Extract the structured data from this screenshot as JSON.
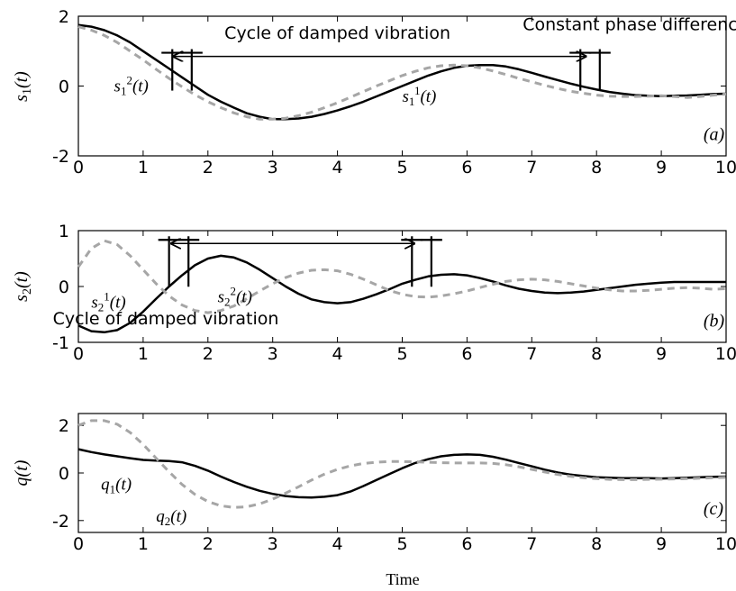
{
  "figure": {
    "xlabel": "Time"
  },
  "chart_data": [
    {
      "type": "line",
      "panel": "(a)",
      "ylabel": {
        "base": "s",
        "sub": "1",
        "arg": "(t)"
      },
      "xlim": [
        0,
        10
      ],
      "ylim": [
        -2,
        2
      ],
      "xticks": [
        "0",
        "1",
        "2",
        "3",
        "4",
        "5",
        "6",
        "7",
        "8",
        "9",
        "10"
      ],
      "yticks": [
        {
          "value": 2,
          "label": "2"
        },
        {
          "value": 0,
          "label": "0"
        },
        {
          "value": -2,
          "label": "-2"
        }
      ],
      "series": [
        {
          "name": "s₁¹(t)",
          "style": "solid",
          "color": "#000000",
          "x": [
            0,
            0.2,
            0.4,
            0.6,
            0.8,
            1.0,
            1.2,
            1.4,
            1.6,
            1.8,
            2.0,
            2.2,
            2.4,
            2.6,
            2.8,
            3.0,
            3.2,
            3.4,
            3.6,
            3.8,
            4.0,
            4.2,
            4.4,
            4.6,
            4.8,
            5.0,
            5.2,
            5.4,
            5.6,
            5.8,
            6.0,
            6.2,
            6.4,
            6.6,
            6.8,
            7.0,
            7.2,
            7.4,
            7.6,
            7.8,
            8.0,
            8.2,
            8.4,
            8.6,
            8.8,
            9.0,
            9.2,
            9.4,
            9.6,
            9.8,
            10.0
          ],
          "y": [
            1.75,
            1.7,
            1.6,
            1.45,
            1.25,
            1.0,
            0.75,
            0.5,
            0.25,
            0.0,
            -0.25,
            -0.45,
            -0.62,
            -0.78,
            -0.88,
            -0.95,
            -0.95,
            -0.93,
            -0.88,
            -0.8,
            -0.7,
            -0.58,
            -0.45,
            -0.3,
            -0.15,
            0.0,
            0.15,
            0.3,
            0.42,
            0.52,
            0.58,
            0.6,
            0.6,
            0.56,
            0.48,
            0.38,
            0.27,
            0.17,
            0.07,
            -0.02,
            -0.1,
            -0.17,
            -0.22,
            -0.26,
            -0.28,
            -0.29,
            -0.28,
            -0.27,
            -0.25,
            -0.23,
            -0.22
          ]
        },
        {
          "name": "s₁²(t)",
          "style": "dashed",
          "color": "#a6a6a6",
          "x": [
            0,
            0.2,
            0.4,
            0.6,
            0.8,
            1.0,
            1.2,
            1.4,
            1.6,
            1.8,
            2.0,
            2.2,
            2.4,
            2.6,
            2.8,
            3.0,
            3.2,
            3.4,
            3.6,
            3.8,
            4.0,
            4.2,
            4.4,
            4.6,
            4.8,
            5.0,
            5.2,
            5.4,
            5.6,
            5.8,
            6.0,
            6.2,
            6.4,
            6.6,
            6.8,
            7.0,
            7.2,
            7.4,
            7.6,
            7.8,
            8.0,
            8.2,
            8.4,
            8.6,
            8.8,
            9.0,
            9.2,
            9.4,
            9.6,
            9.8,
            10.0
          ],
          "y": [
            1.7,
            1.6,
            1.45,
            1.25,
            1.0,
            0.75,
            0.48,
            0.22,
            -0.02,
            -0.25,
            -0.45,
            -0.62,
            -0.77,
            -0.88,
            -0.95,
            -0.95,
            -0.92,
            -0.85,
            -0.75,
            -0.62,
            -0.48,
            -0.32,
            -0.16,
            0.0,
            0.15,
            0.3,
            0.42,
            0.52,
            0.58,
            0.6,
            0.58,
            0.52,
            0.43,
            0.33,
            0.22,
            0.12,
            0.02,
            -0.07,
            -0.15,
            -0.21,
            -0.26,
            -0.29,
            -0.3,
            -0.3,
            -0.29,
            -0.28,
            -0.3,
            -0.33,
            -0.3,
            -0.26,
            -0.23
          ]
        }
      ],
      "annotations": [
        {
          "text": "Cycle of damped vibration",
          "x": 4.0,
          "y": 1.35
        },
        {
          "text": "Constant phase difference",
          "x": 8.6,
          "y": 1.6
        },
        {
          "label_base": "s",
          "label_sub": "1",
          "label_sup": "2",
          "label_arg": "(t)",
          "x": 0.55,
          "y": -0.15
        },
        {
          "label_base": "s",
          "label_sub": "1",
          "label_sup": "1",
          "label_arg": "(t)",
          "x": 5.0,
          "y": -0.45
        },
        {
          "text": "(a)",
          "x": 9.65,
          "y": -1.55
        }
      ],
      "cycle_arrow": {
        "x_start": 1.45,
        "x_end": 7.85,
        "y": 0.85
      },
      "markers_at": [
        1.45,
        1.75,
        7.75,
        8.05
      ]
    },
    {
      "type": "line",
      "panel": "(b)",
      "ylabel": {
        "base": "s",
        "sub": "2",
        "arg": "(t)"
      },
      "xlim": [
        0,
        10
      ],
      "ylim": [
        -1,
        1
      ],
      "xticks": [
        "0",
        "1",
        "2",
        "3",
        "4",
        "5",
        "6",
        "7",
        "8",
        "9",
        "10"
      ],
      "yticks": [
        {
          "value": 1,
          "label": "1"
        },
        {
          "value": 0,
          "label": "0"
        },
        {
          "value": -1,
          "label": "-1"
        }
      ],
      "series": [
        {
          "name": "s₂¹(t)",
          "style": "solid",
          "color": "#000000",
          "x": [
            0,
            0.2,
            0.4,
            0.6,
            0.8,
            1.0,
            1.2,
            1.4,
            1.6,
            1.8,
            2.0,
            2.2,
            2.4,
            2.6,
            2.8,
            3.0,
            3.2,
            3.4,
            3.6,
            3.8,
            4.0,
            4.2,
            4.4,
            4.6,
            4.8,
            5.0,
            5.2,
            5.4,
            5.6,
            5.8,
            6.0,
            6.2,
            6.4,
            6.6,
            6.8,
            7.0,
            7.2,
            7.4,
            7.6,
            7.8,
            8.0,
            8.2,
            8.4,
            8.6,
            8.8,
            9.0,
            9.2,
            9.4,
            9.6,
            9.8,
            10.0
          ],
          "y": [
            -0.7,
            -0.8,
            -0.82,
            -0.78,
            -0.65,
            -0.45,
            -0.22,
            0.0,
            0.2,
            0.38,
            0.5,
            0.55,
            0.52,
            0.43,
            0.3,
            0.15,
            0.0,
            -0.13,
            -0.23,
            -0.28,
            -0.3,
            -0.28,
            -0.22,
            -0.14,
            -0.05,
            0.05,
            0.12,
            0.18,
            0.21,
            0.22,
            0.2,
            0.15,
            0.09,
            0.02,
            -0.04,
            -0.08,
            -0.11,
            -0.12,
            -0.11,
            -0.09,
            -0.06,
            -0.03,
            0.0,
            0.03,
            0.05,
            0.07,
            0.08,
            0.08,
            0.08,
            0.08,
            0.08
          ]
        },
        {
          "name": "s₂²(t)",
          "style": "dashed",
          "color": "#a6a6a6",
          "x": [
            0,
            0.2,
            0.4,
            0.6,
            0.8,
            1.0,
            1.2,
            1.4,
            1.6,
            1.8,
            2.0,
            2.2,
            2.4,
            2.6,
            2.8,
            3.0,
            3.2,
            3.4,
            3.6,
            3.8,
            4.0,
            4.2,
            4.4,
            4.6,
            4.8,
            5.0,
            5.2,
            5.4,
            5.6,
            5.8,
            6.0,
            6.2,
            6.4,
            6.6,
            6.8,
            7.0,
            7.2,
            7.4,
            7.6,
            7.8,
            8.0,
            8.2,
            8.4,
            8.6,
            8.8,
            9.0,
            9.2,
            9.4,
            9.6,
            9.8,
            10.0
          ],
          "y": [
            0.35,
            0.68,
            0.82,
            0.75,
            0.55,
            0.3,
            0.05,
            -0.17,
            -0.33,
            -0.43,
            -0.47,
            -0.43,
            -0.35,
            -0.22,
            -0.08,
            0.05,
            0.16,
            0.24,
            0.29,
            0.3,
            0.28,
            0.22,
            0.13,
            0.03,
            -0.07,
            -0.14,
            -0.18,
            -0.19,
            -0.17,
            -0.13,
            -0.08,
            -0.02,
            0.04,
            0.09,
            0.12,
            0.13,
            0.12,
            0.09,
            0.05,
            0.01,
            -0.03,
            -0.06,
            -0.08,
            -0.08,
            -0.07,
            -0.05,
            -0.03,
            -0.02,
            -0.03,
            -0.05,
            -0.04
          ]
        }
      ],
      "annotations": [
        {
          "text": "Cycle of damped vibration",
          "x": 1.35,
          "y": -0.68
        },
        {
          "label_base": "s",
          "label_sub": "2",
          "label_sup": "1",
          "label_arg": "(t)",
          "x": 0.2,
          "y": -0.38
        },
        {
          "label_base": "s",
          "label_sub": "2",
          "label_sup": "2",
          "label_arg": "(t)",
          "x": 2.15,
          "y": -0.28
        },
        {
          "text": "(b)",
          "x": 9.65,
          "y": -0.72
        }
      ],
      "cycle_arrow": {
        "x_start": 1.42,
        "x_end": 5.2,
        "y": 0.77
      },
      "markers_at": [
        1.4,
        1.7,
        5.15,
        5.45
      ]
    },
    {
      "type": "line",
      "panel": "(c)",
      "ylabel": {
        "base": "q",
        "arg": "(t)"
      },
      "xlim": [
        0,
        10
      ],
      "ylim": [
        -2.5,
        2.5
      ],
      "xticks": [
        "0",
        "1",
        "2",
        "3",
        "4",
        "5",
        "6",
        "7",
        "8",
        "9",
        "10"
      ],
      "yticks": [
        {
          "value": 2,
          "label": "2"
        },
        {
          "value": 0,
          "label": "0"
        },
        {
          "value": -2,
          "label": "-2"
        }
      ],
      "series": [
        {
          "name": "q₁(t)",
          "style": "solid",
          "color": "#000000",
          "x": [
            0,
            0.2,
            0.4,
            0.6,
            0.8,
            1.0,
            1.2,
            1.4,
            1.6,
            1.8,
            2.0,
            2.2,
            2.4,
            2.6,
            2.8,
            3.0,
            3.2,
            3.4,
            3.6,
            3.8,
            4.0,
            4.2,
            4.4,
            4.6,
            4.8,
            5.0,
            5.2,
            5.4,
            5.6,
            5.8,
            6.0,
            6.2,
            6.4,
            6.6,
            6.8,
            7.0,
            7.2,
            7.4,
            7.6,
            7.8,
            8.0,
            8.2,
            8.4,
            8.6,
            8.8,
            9.0,
            9.2,
            9.4,
            9.6,
            9.8,
            10.0
          ],
          "y": [
            1.0,
            0.88,
            0.78,
            0.7,
            0.62,
            0.55,
            0.52,
            0.5,
            0.45,
            0.3,
            0.1,
            -0.15,
            -0.38,
            -0.58,
            -0.75,
            -0.88,
            -0.97,
            -1.02,
            -1.03,
            -1.0,
            -0.93,
            -0.78,
            -0.55,
            -0.3,
            -0.05,
            0.2,
            0.42,
            0.58,
            0.7,
            0.76,
            0.78,
            0.76,
            0.68,
            0.56,
            0.42,
            0.28,
            0.14,
            0.02,
            -0.07,
            -0.13,
            -0.18,
            -0.2,
            -0.22,
            -0.22,
            -0.22,
            -0.23,
            -0.22,
            -0.2,
            -0.18,
            -0.16,
            -0.15
          ]
        },
        {
          "name": "q₂(t)",
          "style": "dashed",
          "color": "#a6a6a6",
          "x": [
            0,
            0.2,
            0.4,
            0.6,
            0.8,
            1.0,
            1.2,
            1.4,
            1.6,
            1.8,
            2.0,
            2.2,
            2.4,
            2.6,
            2.8,
            3.0,
            3.2,
            3.4,
            3.6,
            3.8,
            4.0,
            4.2,
            4.4,
            4.6,
            4.8,
            5.0,
            5.2,
            5.4,
            5.6,
            5.8,
            6.0,
            6.2,
            6.4,
            6.6,
            6.8,
            7.0,
            7.2,
            7.4,
            7.6,
            7.8,
            8.0,
            8.2,
            8.4,
            8.6,
            8.8,
            9.0,
            9.2,
            9.4,
            9.6,
            9.8,
            10.0
          ],
          "y": [
            2.0,
            2.2,
            2.2,
            2.05,
            1.7,
            1.2,
            0.62,
            0.05,
            -0.48,
            -0.9,
            -1.2,
            -1.38,
            -1.45,
            -1.42,
            -1.3,
            -1.1,
            -0.85,
            -0.58,
            -0.3,
            -0.05,
            0.15,
            0.3,
            0.4,
            0.45,
            0.48,
            0.48,
            0.47,
            0.45,
            0.43,
            0.42,
            0.42,
            0.42,
            0.4,
            0.35,
            0.26,
            0.15,
            0.04,
            -0.06,
            -0.14,
            -0.2,
            -0.24,
            -0.27,
            -0.28,
            -0.28,
            -0.27,
            -0.26,
            -0.25,
            -0.24,
            -0.22,
            -0.2,
            -0.18
          ]
        }
      ],
      "annotations": [
        {
          "label_base": "q",
          "label_sub": "1",
          "label_arg": "(t)",
          "x": 0.35,
          "y": -0.7
        },
        {
          "label_base": "q",
          "label_sub": "2",
          "label_arg": "(t)",
          "x": 1.2,
          "y": -2.05
        },
        {
          "text": "(c)",
          "x": 9.65,
          "y": -1.75
        }
      ]
    }
  ]
}
